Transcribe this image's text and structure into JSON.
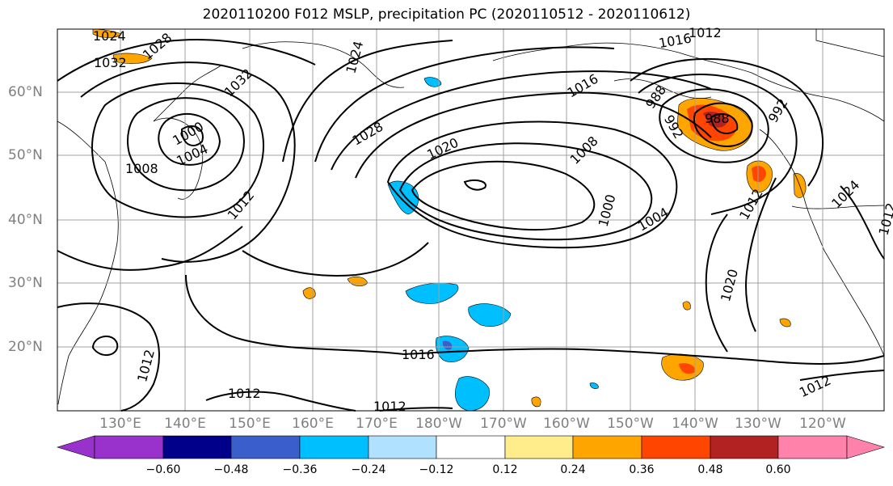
{
  "title": "2020110200 F012 MSLP, precipitation PC (2020110512 - 2020110612)",
  "lat_labels": [
    "60°N",
    "50°N",
    "40°N",
    "30°N",
    "20°N"
  ],
  "lon_labels": [
    "130°E",
    "140°E",
    "150°E",
    "160°E",
    "170°E",
    "180°W",
    "170°W",
    "160°W",
    "150°W",
    "140°W",
    "130°W",
    "120°W"
  ],
  "colorbar": {
    "ticks": [
      "−0.60",
      "−0.48",
      "−0.36",
      "−0.24",
      "−0.12",
      "0.12",
      "0.24",
      "0.36",
      "0.48",
      "0.60"
    ],
    "colors": [
      "#9932cc",
      "#00008b",
      "#3a5fcd",
      "#00bfff",
      "#b0e2ff",
      "#ffffff",
      "#ffec8b",
      "#ffa500",
      "#ff4500",
      "#b22222",
      "#ff82ab"
    ]
  },
  "contour_labels": [
    "1024",
    "1028",
    "1032",
    "1032",
    "1024",
    "1016",
    "1016",
    "1000",
    "1004",
    "1008",
    "1012",
    "1028",
    "1020",
    "1008",
    "988",
    "992",
    "988",
    "992",
    "1000",
    "1004",
    "1012",
    "1024",
    "1012",
    "1020",
    "1016",
    "1012",
    "1012",
    "1012",
    "1012",
    "1012"
  ]
}
